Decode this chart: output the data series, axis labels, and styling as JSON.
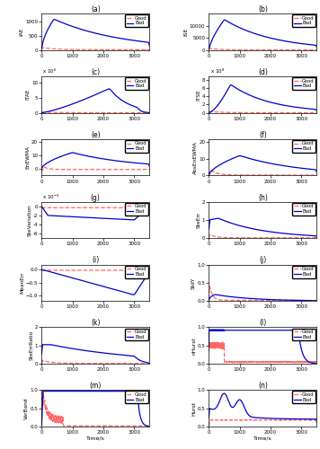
{
  "panels": [
    {
      "label": "IAE",
      "row": 0,
      "col": 0,
      "panel_id": "(a)",
      "ylim": [
        0,
        1300
      ],
      "yticks": [
        0,
        500,
        1000
      ],
      "scale": null
    },
    {
      "label": "ISE",
      "row": 0,
      "col": 1,
      "panel_id": "(b)",
      "ylim": [
        0,
        15000
      ],
      "yticks": [
        0,
        5000,
        10000
      ],
      "scale": null
    },
    {
      "label": "ITAE",
      "row": 1,
      "col": 0,
      "panel_id": "(c)",
      "ylim": [
        0,
        12000000.0
      ],
      "yticks": [
        0,
        5000000.0,
        10000000.0
      ],
      "scale": 6
    },
    {
      "label": "ITSE",
      "row": 1,
      "col": 1,
      "panel_id": "(d)",
      "ylim": [
        0,
        900000000.0
      ],
      "yticks": [
        0,
        200000000.0,
        400000000.0,
        600000000.0,
        800000000.0
      ],
      "scale": 8
    },
    {
      "label": "EnEWMA",
      "row": 2,
      "col": 0,
      "panel_id": "(e)",
      "ylim": [
        -5,
        22
      ],
      "yticks": [
        0,
        10,
        20
      ],
      "scale": null
    },
    {
      "label": "AbsEnEWMA",
      "row": 2,
      "col": 1,
      "panel_id": "(f)",
      "ylim": [
        0,
        22
      ],
      "yticks": [
        0,
        10,
        20
      ],
      "scale": null
    },
    {
      "label": "SteVariation",
      "row": 3,
      "col": 0,
      "panel_id": "(g)",
      "ylim": [
        -0.007,
        0.001
      ],
      "yticks": [
        -0.006,
        -0.004,
        -0.002,
        0
      ],
      "scale": -3
    },
    {
      "label": "SteErr",
      "row": 3,
      "col": 1,
      "panel_id": "(h)",
      "ylim": [
        0,
        2
      ],
      "yticks": [
        0,
        1,
        2
      ],
      "scale": null
    },
    {
      "label": "MeanErr",
      "row": 4,
      "col": 0,
      "panel_id": "(i)",
      "ylim": [
        -1.2,
        0.2
      ],
      "yticks": [
        -1,
        -0.5,
        0
      ],
      "scale": null
    },
    {
      "label": "StdY",
      "row": 4,
      "col": 1,
      "panel_id": "(j)",
      "ylim": [
        0,
        1
      ],
      "yticks": [
        0,
        0.5,
        1
      ],
      "scale": null
    },
    {
      "label": "SteErrRatio",
      "row": 5,
      "col": 0,
      "panel_id": "(k)",
      "ylim": [
        0,
        2
      ],
      "yticks": [
        0,
        1,
        2
      ],
      "scale": null
    },
    {
      "label": "nHurst",
      "row": 5,
      "col": 1,
      "panel_id": "(l)",
      "ylim": [
        0,
        1
      ],
      "yticks": [
        0,
        0.5,
        1
      ],
      "scale": null
    },
    {
      "label": "VarBand",
      "row": 6,
      "col": 0,
      "panel_id": "(m)",
      "ylim": [
        0,
        1
      ],
      "yticks": [
        0,
        0.5,
        1
      ],
      "scale": null
    },
    {
      "label": "Hurst",
      "row": 6,
      "col": 1,
      "panel_id": "(n)",
      "ylim": [
        0,
        1
      ],
      "yticks": [
        0,
        0.5,
        1
      ],
      "scale": null
    }
  ],
  "t_max": 3500,
  "color_good": "#FF6666",
  "color_bad": "#0000CC",
  "lw_bad": 0.9,
  "lw_good": 0.9
}
